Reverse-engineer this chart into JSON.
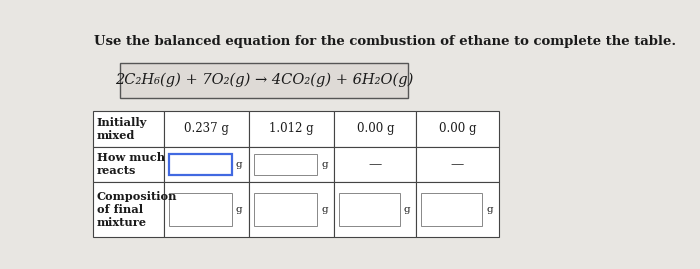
{
  "title": "Use the balanced equation for the combustion of ethane to complete the table.",
  "equation": "2C₂H₆(g) + 7O₂(g) → 4CO₂(g) + 6H₂O(g)",
  "row_labels": [
    "Initially\nmixed",
    "How much\nreacts",
    "Composition\nof final\nmixture"
  ],
  "col_values_row0": [
    "0.237 g",
    "1.012 g",
    "0.00 g",
    "0.00 g"
  ],
  "highlight_box_color": "#4169e1",
  "bg_color": "#e8e6e2",
  "text_color": "#1a1a1a",
  "title_fontsize": 9.5,
  "eq_fontsize": 10.5,
  "cell_fontsize": 8.5,
  "label_fontsize": 8.2
}
